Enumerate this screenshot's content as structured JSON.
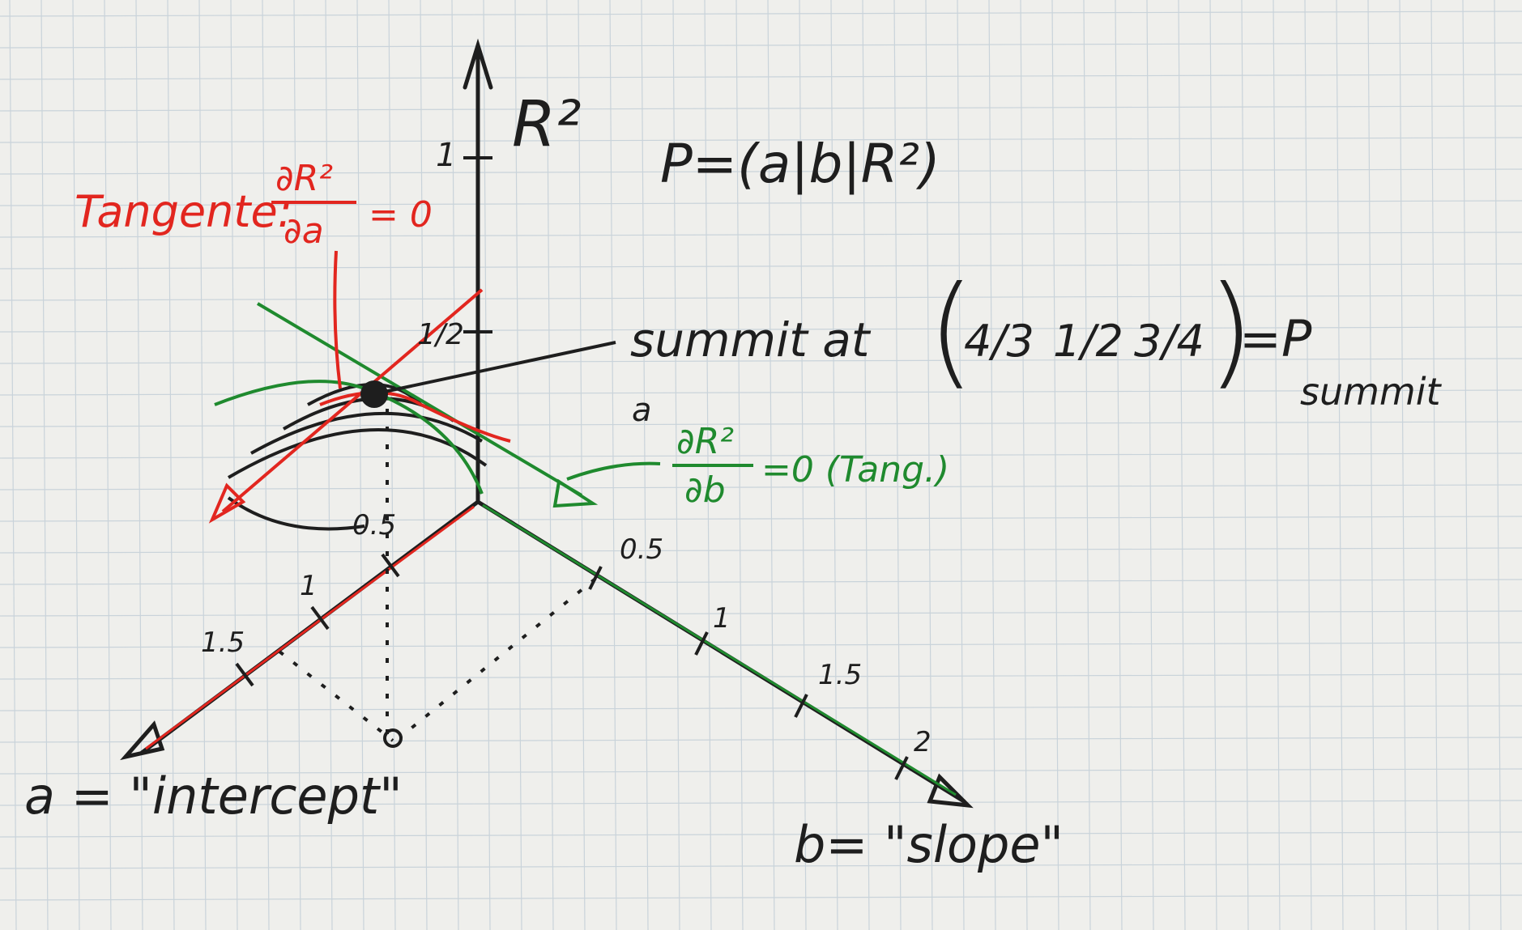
{
  "colors": {
    "ink": "#1e1e1e",
    "red": "#e2261f",
    "green": "#1f8a2e",
    "paper": "#efefec",
    "grid": "#c9d3da"
  },
  "axes": {
    "vertical_label": "R²",
    "vertical_tick_1": "1",
    "vertical_tick_half": "1/2",
    "a_ticks": [
      "0.5",
      "1",
      "1.5"
    ],
    "b_ticks": [
      "0.5",
      "1",
      "1.5",
      "2"
    ],
    "a_label": "a = \"intercept\"",
    "b_label": "b= \"slope\""
  },
  "annotations": {
    "point_def": "P=(a|b|R²)",
    "tangent_red_prefix": "Tangente:",
    "tangent_red_num": "∂R²",
    "tangent_red_den": "∂a",
    "tangent_red_eq": "= 0",
    "summit_text": "summit at",
    "summit_a": "4/3",
    "summit_b": "1/2",
    "summit_r2": "3/4",
    "summit_p": "=P",
    "summit_sub": "summit",
    "a_marker": "a",
    "tangent_green_num": "∂R²",
    "tangent_green_den": "∂b",
    "tangent_green_eq": "=0 (Tang.)"
  }
}
